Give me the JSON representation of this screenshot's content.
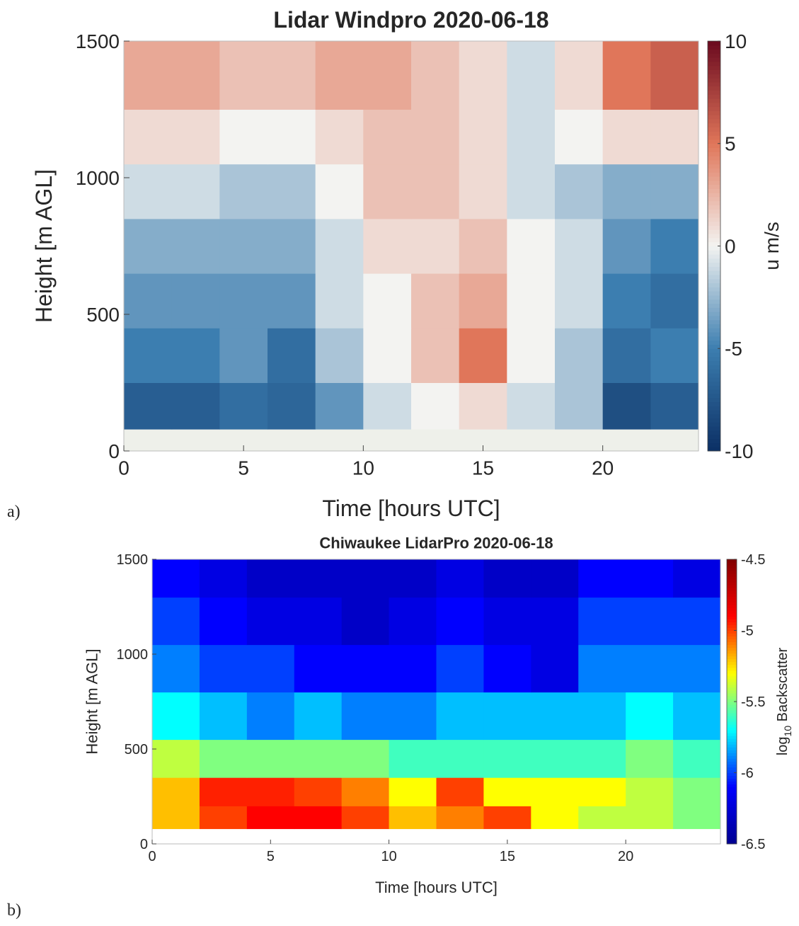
{
  "chart_data": [
    {
      "type": "heatmap",
      "panel_label": "a)",
      "title": "Lidar Windpro 2020-06-18",
      "xlabel": "Time [hours UTC]",
      "ylabel": "Height [m AGL]",
      "colorbar_label": [
        "u m/s"
      ],
      "x": [
        0,
        2,
        4,
        6,
        8,
        10,
        12,
        14,
        16,
        18,
        20,
        22,
        24
      ],
      "y": [
        0,
        80,
        250,
        450,
        650,
        850,
        1050,
        1250,
        1500
      ],
      "values": [
        [
          null,
          null,
          null,
          null,
          null,
          null,
          null,
          null,
          null,
          null,
          null,
          null
        ],
        [
          -7,
          -7,
          -6,
          -6.5,
          -4,
          -1,
          0,
          1,
          -1,
          -2,
          -8,
          -7
        ],
        [
          -5,
          -5,
          -4,
          -6,
          -2,
          0,
          2,
          5,
          0,
          -2,
          -6,
          -5
        ],
        [
          -4,
          -4,
          -4,
          -4,
          -1,
          0,
          2,
          3,
          0,
          -1,
          -5,
          -6
        ],
        [
          -3,
          -3,
          -3,
          -3,
          -1,
          1,
          1,
          2,
          0,
          -1,
          -4,
          -5
        ],
        [
          -1,
          -1,
          -2,
          -2,
          0,
          2,
          2,
          1,
          -1,
          -2,
          -3,
          -3
        ],
        [
          1,
          1,
          0,
          0,
          1,
          2,
          2,
          1,
          -1,
          0,
          1,
          1
        ],
        [
          3,
          3,
          2,
          2,
          3,
          3,
          2,
          1,
          -1,
          1,
          5,
          6
        ]
      ],
      "xlim": [
        0,
        24
      ],
      "xticks": [
        0,
        5,
        10,
        15,
        20
      ],
      "ylim": [
        0,
        1500
      ],
      "yticks": [
        0,
        500,
        1000,
        1500
      ],
      "clim": [
        -10,
        10
      ],
      "cticks": [
        -10,
        -5,
        0,
        5,
        10
      ],
      "colormap": [
        "#0b2f64",
        "#3c7eb0",
        "#f3f3f1",
        "#e0765a",
        "#6b0a1f"
      ],
      "nan_color": "#eef0ea"
    },
    {
      "type": "heatmap",
      "panel_label": "b)",
      "title": "Chiwaukee LidarPro 2020-06-18",
      "xlabel": "Time [hours UTC]",
      "ylabel": "Height [m AGL]",
      "colorbar_label": [
        "log",
        "10",
        " Backscatter"
      ],
      "x": [
        0,
        2,
        4,
        6,
        8,
        10,
        12,
        14,
        16,
        18,
        20,
        22,
        24
      ],
      "y": [
        0,
        80,
        200,
        350,
        550,
        800,
        1050,
        1300,
        1500
      ],
      "values": [
        [
          null,
          null,
          null,
          null,
          null,
          null,
          null,
          null,
          null,
          null,
          null,
          null
        ],
        [
          -5.2,
          -5.0,
          -4.9,
          -4.9,
          -5.0,
          -5.2,
          -5.1,
          -5.0,
          -5.3,
          -5.4,
          -5.4,
          -5.5
        ],
        [
          -5.2,
          -4.95,
          -4.95,
          -5.0,
          -5.1,
          -5.3,
          -5.0,
          -5.3,
          -5.3,
          -5.3,
          -5.4,
          -5.5
        ],
        [
          -5.4,
          -5.5,
          -5.5,
          -5.5,
          -5.5,
          -5.6,
          -5.6,
          -5.6,
          -5.6,
          -5.6,
          -5.5,
          -5.6
        ],
        [
          -5.7,
          -5.8,
          -5.9,
          -5.8,
          -5.9,
          -5.9,
          -5.8,
          -5.8,
          -5.8,
          -5.8,
          -5.7,
          -5.8
        ],
        [
          -5.9,
          -6.0,
          -6.0,
          -6.1,
          -6.1,
          -6.1,
          -6.0,
          -6.1,
          -6.2,
          -5.9,
          -5.9,
          -5.9
        ],
        [
          -6.0,
          -6.1,
          -6.2,
          -6.2,
          -6.3,
          -6.2,
          -6.1,
          -6.2,
          -6.2,
          -6.0,
          -6.0,
          -6.0
        ],
        [
          -6.1,
          -6.2,
          -6.3,
          -6.3,
          -6.3,
          -6.3,
          -6.2,
          -6.3,
          -6.3,
          -6.1,
          -6.1,
          -6.2
        ]
      ],
      "xlim": [
        0,
        24
      ],
      "xticks": [
        0,
        5,
        10,
        15,
        20
      ],
      "ylim": [
        0,
        1500
      ],
      "yticks": [
        0,
        500,
        1000,
        1500
      ],
      "clim": [
        -6.5,
        -4.5
      ],
      "cticks": [
        -6.5,
        -6,
        -5.5,
        -5,
        -4.5
      ],
      "colormap": [
        "#00008f",
        "#0000ff",
        "#00ffff",
        "#ffff00",
        "#ff0000",
        "#800000"
      ],
      "nan_color": "#ffffff"
    }
  ]
}
